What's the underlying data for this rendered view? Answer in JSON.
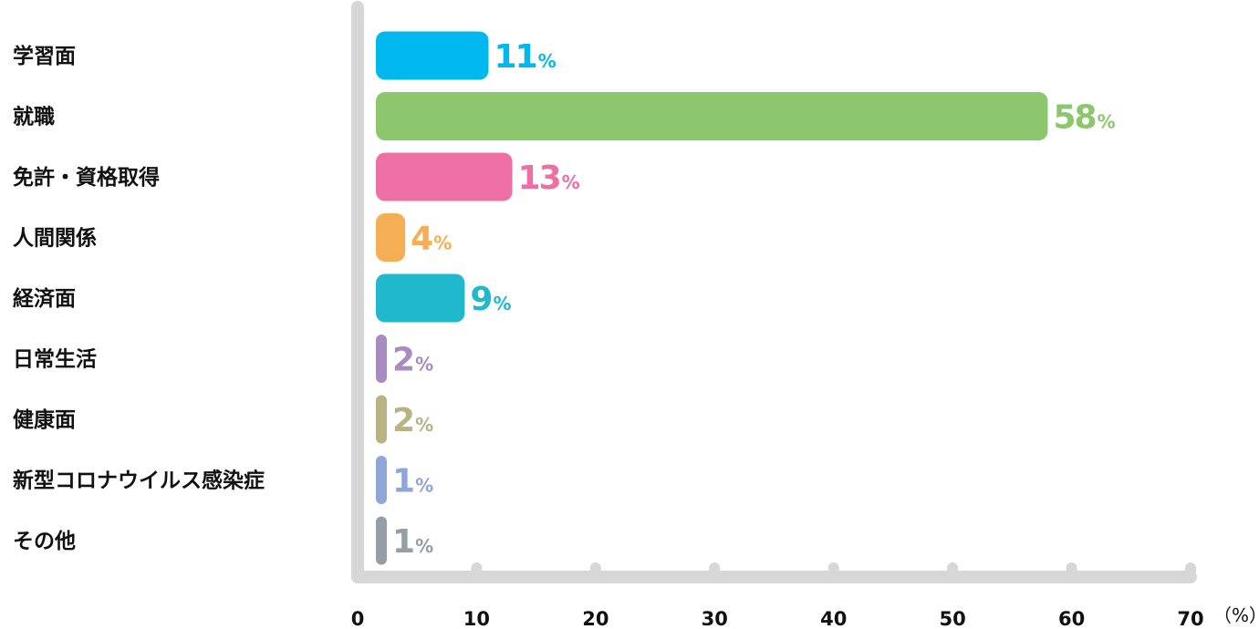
{
  "chart_data": {
    "type": "bar",
    "orientation": "horizontal",
    "categories": [
      "学習面",
      "就職",
      "免許・資格取得",
      "人間関係",
      "経済面",
      "日常生活",
      "健康面",
      "新型コロナウイルス感染症",
      "その他"
    ],
    "values": [
      11,
      58,
      13,
      4,
      9,
      2,
      2,
      1,
      1
    ],
    "value_labels": [
      "11",
      "58",
      "13",
      "4",
      "9",
      "2",
      "2",
      "1",
      "1"
    ],
    "value_suffix": "%",
    "colors": [
      "#00b7ee",
      "#8dc76d",
      "#ee6fa4",
      "#f4af55",
      "#1fb8cc",
      "#a88bc0",
      "#b9b283",
      "#8fa6d6",
      "#959ea4"
    ],
    "axis_color": "#d7d7d7",
    "xlim": [
      0,
      70
    ],
    "xticks": [
      "0",
      "10",
      "20",
      "30",
      "40",
      "50",
      "60",
      "70"
    ],
    "unit_label": "（%）",
    "grid": false,
    "legend": "none"
  }
}
